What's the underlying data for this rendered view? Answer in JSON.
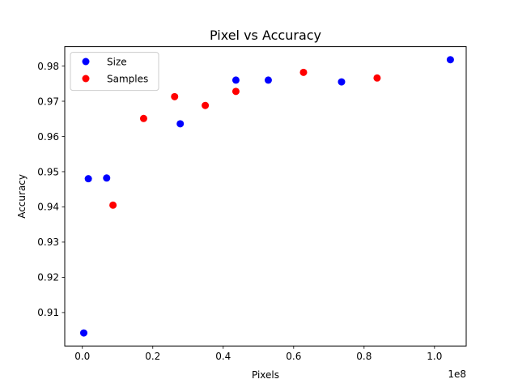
{
  "chart_data": {
    "type": "scatter",
    "title": "Pixel vs Accuracy",
    "xlabel": "Pixels",
    "ylabel": "Accuracy",
    "x_offset_text": "1e8",
    "xlim": [
      -0.05,
      1.09
    ],
    "ylim": [
      0.9005,
      0.9855
    ],
    "x_scale_multiplier": 100000000,
    "x_ticks": [
      0.0,
      0.2,
      0.4,
      0.6,
      0.8,
      1.0
    ],
    "x_tick_labels": [
      "0.0",
      "0.2",
      "0.4",
      "0.6",
      "0.8",
      "1.0"
    ],
    "y_ticks": [
      0.91,
      0.92,
      0.93,
      0.94,
      0.95,
      0.96,
      0.97,
      0.98
    ],
    "y_tick_labels": [
      "0.91",
      "0.92",
      "0.93",
      "0.94",
      "0.95",
      "0.96",
      "0.97",
      "0.98"
    ],
    "grid": false,
    "legend": {
      "position": "upper left",
      "entries": [
        {
          "label": "Size",
          "color": "#0000ff"
        },
        {
          "label": "Samples",
          "color": "#ff0000"
        }
      ]
    },
    "series": [
      {
        "name": "Size",
        "color": "#0000ff",
        "points": [
          {
            "x": 0.004,
            "y": 0.9042
          },
          {
            "x": 0.017,
            "y": 0.948
          },
          {
            "x": 0.069,
            "y": 0.9482
          },
          {
            "x": 0.278,
            "y": 0.9636
          },
          {
            "x": 0.436,
            "y": 0.976
          },
          {
            "x": 0.528,
            "y": 0.976
          },
          {
            "x": 0.736,
            "y": 0.9755
          },
          {
            "x": 1.045,
            "y": 0.9818
          }
        ]
      },
      {
        "name": "Samples",
        "color": "#ff0000",
        "points": [
          {
            "x": 0.087,
            "y": 0.9405
          },
          {
            "x": 0.174,
            "y": 0.9651
          },
          {
            "x": 0.262,
            "y": 0.9713
          },
          {
            "x": 0.349,
            "y": 0.9688
          },
          {
            "x": 0.436,
            "y": 0.9728
          },
          {
            "x": 0.628,
            "y": 0.9782
          },
          {
            "x": 0.837,
            "y": 0.9766
          }
        ]
      }
    ]
  }
}
